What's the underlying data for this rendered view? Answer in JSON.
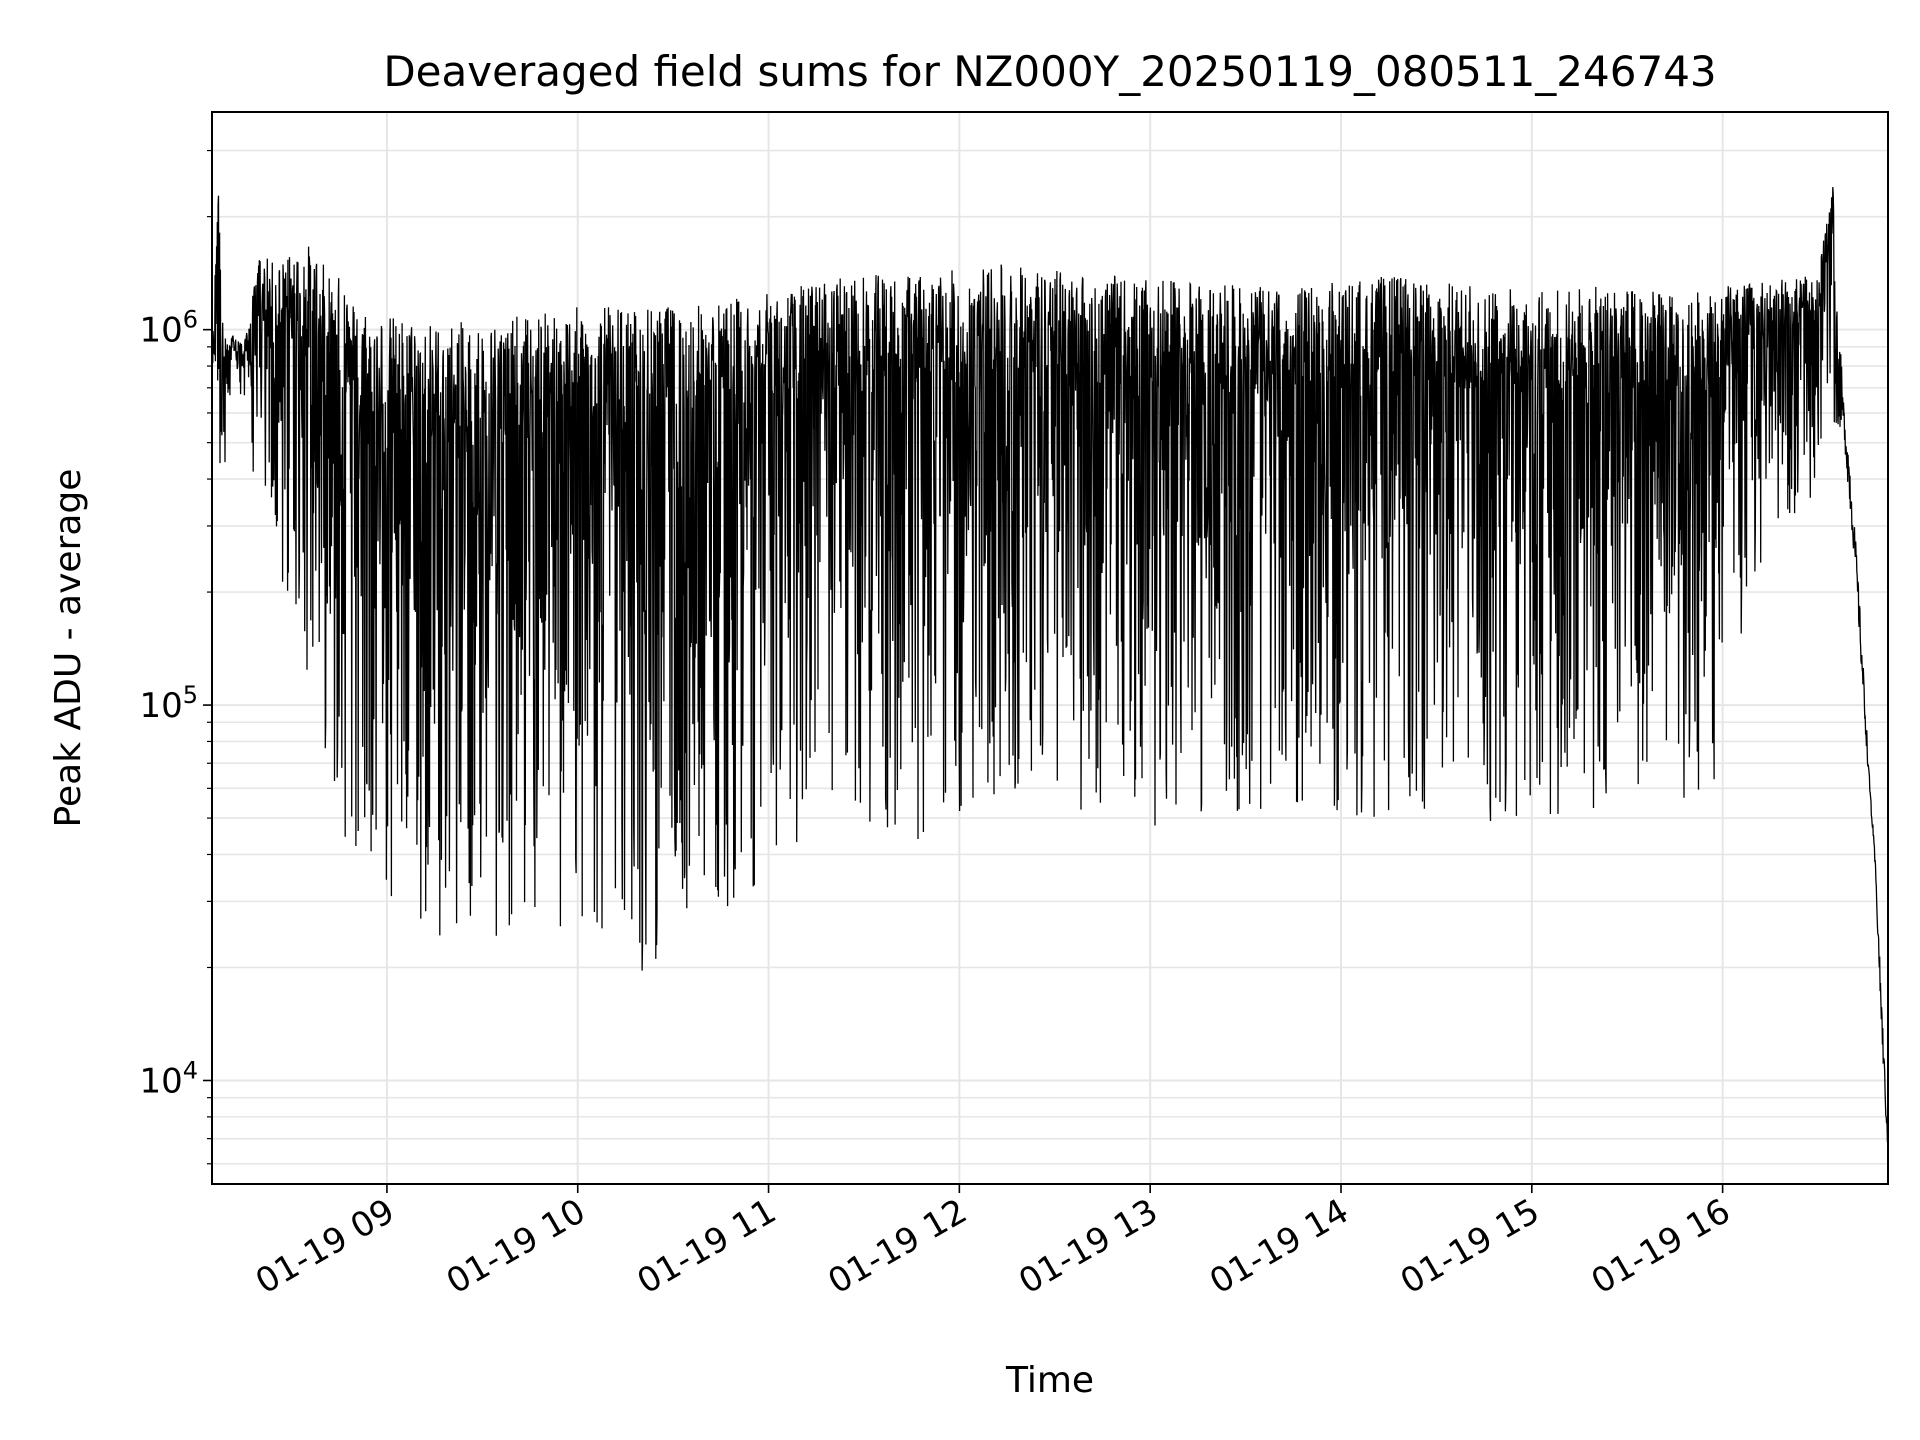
{
  "chart_data": {
    "type": "line",
    "title": "Deaveraged field sums for NZ000Y_20250119_080511_246743",
    "xlabel": "Time",
    "ylabel": "Peak ADU - average",
    "yscale": "log",
    "ylim": [
      5300,
      3800000
    ],
    "xlim": [
      "2025-01-19 08:05",
      "2025-01-19 16:52"
    ],
    "grid": true,
    "line_color": "#000000",
    "grid_color": "#e6e6e6",
    "x_ticks": [
      {
        "value": "2025-01-19 09:00",
        "label": "01-19 09"
      },
      {
        "value": "2025-01-19 10:00",
        "label": "01-19 10"
      },
      {
        "value": "2025-01-19 11:00",
        "label": "01-19 11"
      },
      {
        "value": "2025-01-19 12:00",
        "label": "01-19 12"
      },
      {
        "value": "2025-01-19 13:00",
        "label": "01-19 13"
      },
      {
        "value": "2025-01-19 14:00",
        "label": "01-19 14"
      },
      {
        "value": "2025-01-19 15:00",
        "label": "01-19 15"
      },
      {
        "value": "2025-01-19 16:00",
        "label": "01-19 16"
      }
    ],
    "y_ticks": [
      {
        "value": 10000,
        "base": "10",
        "exp": "4"
      },
      {
        "value": 100000,
        "base": "10",
        "exp": "5"
      },
      {
        "value": 1000000,
        "base": "10",
        "exp": "6"
      }
    ],
    "series": [
      {
        "x": [
          "2025-01-19 08:05",
          "2025-01-19 08:06",
          "2025-01-19 08:07",
          "2025-01-19 08:08",
          "2025-01-19 08:10",
          "2025-01-19 08:12",
          "2025-01-19 08:15",
          "2025-01-19 08:20",
          "2025-01-19 08:25",
          "2025-01-19 08:30",
          "2025-01-19 08:35",
          "2025-01-19 08:40",
          "2025-01-19 08:45",
          "2025-01-19 08:50",
          "2025-01-19 08:55",
          "2025-01-19 09:00",
          "2025-01-19 09:15",
          "2025-01-19 09:30",
          "2025-01-19 09:45",
          "2025-01-19 10:00",
          "2025-01-19 10:15",
          "2025-01-19 10:20",
          "2025-01-19 10:30",
          "2025-01-19 10:45",
          "2025-01-19 11:00",
          "2025-01-19 11:15",
          "2025-01-19 11:30",
          "2025-01-19 11:45",
          "2025-01-19 12:00",
          "2025-01-19 12:15",
          "2025-01-19 12:30",
          "2025-01-19 12:45",
          "2025-01-19 13:00",
          "2025-01-19 13:15",
          "2025-01-19 13:30",
          "2025-01-19 13:45",
          "2025-01-19 14:00",
          "2025-01-19 14:15",
          "2025-01-19 14:30",
          "2025-01-19 14:45",
          "2025-01-19 15:00",
          "2025-01-19 15:15",
          "2025-01-19 15:30",
          "2025-01-19 15:45",
          "2025-01-19 16:00",
          "2025-01-19 16:15",
          "2025-01-19 16:30",
          "2025-01-19 16:35",
          "2025-01-19 16:38",
          "2025-01-19 16:40",
          "2025-01-19 16:42",
          "2025-01-19 16:44",
          "2025-01-19 16:46",
          "2025-01-19 16:48",
          "2025-01-19 16:50",
          "2025-01-19 16:52"
        ],
        "upper": [
          800000,
          1500000,
          2700000,
          1100000,
          900000,
          1000000,
          900000,
          1600000,
          1500000,
          1600000,
          1700000,
          1500000,
          1400000,
          1200000,
          1150000,
          1100000,
          1050000,
          1050000,
          1100000,
          1150000,
          1150000,
          1150000,
          1150000,
          1200000,
          1250000,
          1350000,
          1400000,
          1400000,
          1450000,
          1500000,
          1450000,
          1400000,
          1350000,
          1350000,
          1300000,
          1300000,
          1350000,
          1400000,
          1350000,
          1300000,
          1300000,
          1300000,
          1300000,
          1250000,
          1300000,
          1350000,
          1400000,
          2600000,
          700000,
          500000,
          280000,
          150000,
          70000,
          40000,
          18000,
          7000
        ],
        "lower": [
          650000,
          500000,
          700000,
          180000,
          600000,
          600000,
          650000,
          300000,
          200000,
          180000,
          120000,
          80000,
          50000,
          35000,
          28000,
          26000,
          24000,
          24000,
          24000,
          23000,
          21000,
          18000,
          25000,
          28000,
          35000,
          42000,
          45000,
          40000,
          50000,
          55000,
          55000,
          50000,
          45000,
          50000,
          48000,
          50000,
          48000,
          50000,
          52000,
          48000,
          50000,
          48000,
          48000,
          50000,
          60000,
          300000,
          350000,
          380000,
          500000,
          300000,
          200000,
          100000,
          60000,
          35000,
          12000,
          6000
        ]
      }
    ]
  }
}
